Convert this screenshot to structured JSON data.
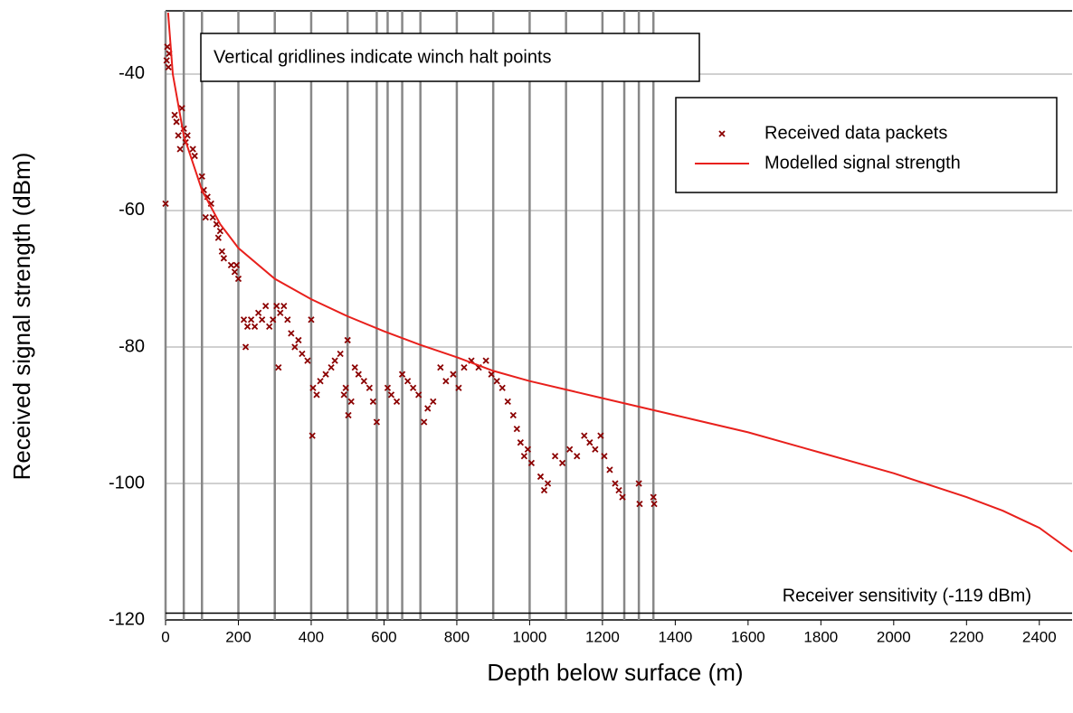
{
  "chart_data": {
    "type": "scatter",
    "xlabel": "Depth below surface (m)",
    "ylabel": "Received signal strength (dBm)",
    "annotation": "Vertical gridlines indicate winch halt points",
    "xlim": [
      0,
      2490
    ],
    "ylim": [
      -120,
      -31
    ],
    "xticks": [
      0,
      200,
      400,
      600,
      800,
      1000,
      1200,
      1400,
      1600,
      1800,
      2000,
      2200,
      2400
    ],
    "yticks": [
      -120,
      -100,
      -80,
      -60,
      -40
    ],
    "grid": true,
    "halt_points": [
      0,
      50,
      100,
      200,
      300,
      400,
      500,
      580,
      610,
      650,
      700,
      800,
      900,
      1000,
      1100,
      1200,
      1260,
      1300,
      1340
    ],
    "reference_line": {
      "value": -119,
      "label": "Receiver sensitivity (-119 dBm)"
    },
    "legend": "upper right",
    "series": [
      {
        "name": "Received data packets",
        "type": "scatter",
        "color": "#8b0000",
        "x": [
          0,
          3,
          5,
          8,
          10,
          25,
          30,
          35,
          40,
          45,
          50,
          55,
          60,
          75,
          80,
          100,
          105,
          110,
          115,
          125,
          130,
          140,
          145,
          150,
          155,
          160,
          180,
          190,
          195,
          200,
          215,
          220,
          225,
          235,
          245,
          255,
          265,
          275,
          285,
          295,
          305,
          310,
          315,
          325,
          335,
          345,
          355,
          365,
          375,
          390,
          400,
          403,
          405,
          415,
          425,
          440,
          455,
          465,
          480,
          490,
          495,
          500,
          502,
          510,
          520,
          530,
          545,
          560,
          570,
          580,
          610,
          620,
          635,
          650,
          665,
          680,
          695,
          710,
          720,
          735,
          755,
          770,
          790,
          805,
          820,
          840,
          860,
          880,
          895,
          910,
          925,
          940,
          955,
          965,
          975,
          985,
          995,
          1005,
          1030,
          1040,
          1050,
          1070,
          1090,
          1110,
          1130,
          1150,
          1165,
          1180,
          1195,
          1205,
          1220,
          1235,
          1245,
          1255,
          1300,
          1302,
          1340,
          1342
        ],
        "values": [
          -59,
          -38,
          -36,
          -39,
          -37,
          -46,
          -47,
          -49,
          -51,
          -45,
          -48,
          -50,
          -49,
          -51,
          -52,
          -55,
          -57,
          -61,
          -58,
          -59,
          -61,
          -62,
          -64,
          -63,
          -66,
          -67,
          -68,
          -69,
          -68,
          -70,
          -76,
          -80,
          -77,
          -76,
          -77,
          -75,
          -76,
          -74,
          -77,
          -76,
          -74,
          -83,
          -75,
          -74,
          -76,
          -78,
          -80,
          -79,
          -81,
          -82,
          -76,
          -93,
          -86,
          -87,
          -85,
          -84,
          -83,
          -82,
          -81,
          -87,
          -86,
          -79,
          -90,
          -88,
          -83,
          -84,
          -85,
          -86,
          -88,
          -91,
          -86,
          -87,
          -88,
          -84,
          -85,
          -86,
          -87,
          -91,
          -89,
          -88,
          -83,
          -85,
          -84,
          -86,
          -83,
          -82,
          -83,
          -82,
          -84,
          -85,
          -86,
          -88,
          -90,
          -92,
          -94,
          -96,
          -95,
          -97,
          -99,
          -101,
          -100,
          -96,
          -97,
          -95,
          -96,
          -93,
          -94,
          -95,
          -93,
          -96,
          -98,
          -100,
          -101,
          -102,
          -100,
          -103,
          -102,
          -103
        ]
      },
      {
        "name": "Modelled signal strength",
        "type": "line",
        "color": "#e8201c",
        "x": [
          7,
          20,
          50,
          100,
          150,
          200,
          300,
          400,
          500,
          600,
          700,
          800,
          900,
          1000,
          1200,
          1400,
          1600,
          1800,
          2000,
          2200,
          2300,
          2400,
          2490
        ],
        "values": [
          -31,
          -40,
          -49,
          -57,
          -62,
          -65.5,
          -70,
          -73,
          -75.5,
          -77.7,
          -79.7,
          -81.5,
          -83.5,
          -85,
          -87.5,
          -90,
          -92.5,
          -95.5,
          -98.5,
          -102,
          -104,
          -106.5,
          -110
        ]
      }
    ]
  }
}
